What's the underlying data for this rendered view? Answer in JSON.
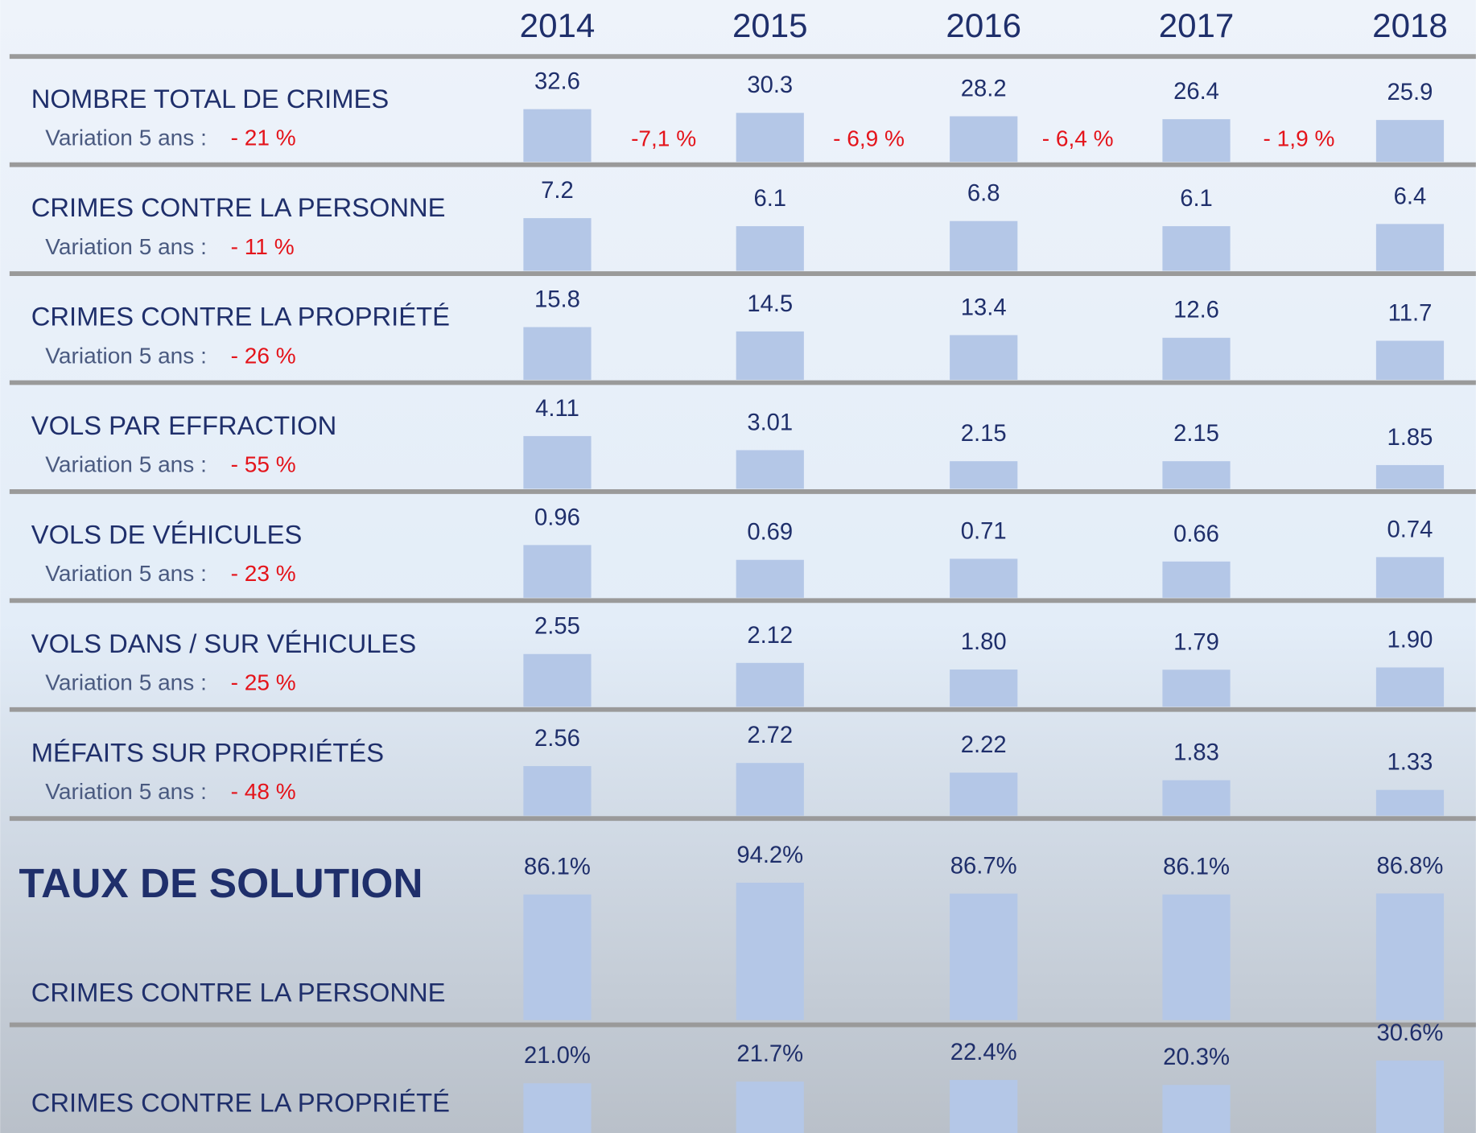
{
  "years": [
    "2014",
    "2015",
    "2016",
    "2017",
    "2018"
  ],
  "crime_rows": [
    {
      "label": "NOMBRE TOTAL DE CRIMES",
      "variation_label": "Variation 5 ans :",
      "variation": "- 21 %",
      "values": [
        32.6,
        30.3,
        28.2,
        26.4,
        25.9
      ]
    },
    {
      "label": "CRIMES CONTRE LA PERSONNE",
      "variation_label": "Variation 5 ans :",
      "variation": "- 11 %",
      "values": [
        7.2,
        6.1,
        6.8,
        6.1,
        6.4
      ]
    },
    {
      "label": "CRIMES CONTRE LA PROPRIÉTÉ",
      "variation_label": "Variation 5 ans :",
      "variation": "- 26 %",
      "values": [
        15.8,
        14.5,
        13.4,
        12.6,
        11.7
      ]
    },
    {
      "label": "VOLS PAR EFFRACTION",
      "variation_label": "Variation 5 ans :",
      "variation": "- 55 %",
      "values": [
        4.11,
        3.01,
        2.15,
        2.15,
        1.85
      ]
    },
    {
      "label": "VOLS DE VÉHICULES",
      "variation_label": "Variation 5 ans :",
      "variation": "- 23 %",
      "values": [
        0.96,
        0.69,
        0.71,
        0.66,
        0.74
      ]
    },
    {
      "label": "VOLS DANS / SUR VÉHICULES",
      "variation_label": "Variation 5 ans :",
      "variation": "- 25 %",
      "values": [
        2.55,
        2.12,
        1.8,
        1.79,
        1.9
      ],
      "value_labels": [
        "2.55",
        "2.12",
        "1.80",
        "1.79",
        "1.90"
      ]
    },
    {
      "label": "MÉFAITS SUR PROPRIÉTÉS",
      "variation_label": "Variation 5 ans :",
      "variation": "- 48 %",
      "values": [
        2.56,
        2.72,
        2.22,
        1.83,
        1.33
      ]
    }
  ],
  "total_changes": [
    "-7,1 %",
    "- 6,9 %",
    "- 6,4 %",
    "- 1,9 %"
  ],
  "solution": {
    "title": "TAUX DE SOLUTION",
    "rows": [
      {
        "label": "CRIMES CONTRE LA PERSONNE",
        "values": [
          86.1,
          94.2,
          86.7,
          86.1,
          86.8
        ],
        "value_labels": [
          "86.1%",
          "94.2%",
          "86.7%",
          "86.1%",
          "86.8%"
        ]
      },
      {
        "label": "CRIMES CONTRE LA PROPRIÉTÉ",
        "values": [
          21.0,
          21.7,
          22.4,
          20.3,
          30.6
        ],
        "value_labels": [
          "21.0%",
          "21.7%",
          "22.4%",
          "20.3%",
          "30.6%"
        ]
      }
    ]
  }
}
